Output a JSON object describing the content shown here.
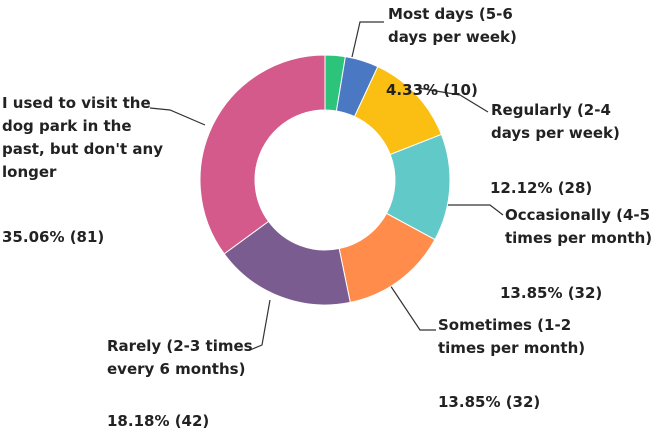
{
  "chart_data": {
    "type": "donut",
    "categories": [
      null,
      "Most days (5-6 days per week)",
      "Regularly (2-4 days per week)",
      "Occasionally (4-5 times per month)",
      "Sometimes (1-2 times per month)",
      "Rarely (2-3 times every 6 months)",
      "I used to visit the dog park in the past, but don't any longer"
    ],
    "values": [
      2.61,
      4.33,
      12.12,
      13.85,
      13.85,
      18.18,
      35.06
    ],
    "value_labels": [
      null,
      "4.33% (10)",
      "12.12% (28)",
      "13.85% (32)",
      "13.85% (32)",
      "18.18% (42)",
      "35.06% (81)"
    ],
    "colors": [
      "#2bc47a",
      "#4a78c2",
      "#fbbf14",
      "#62c9c9",
      "#ff8c4a",
      "#7a5c91",
      "#d35a8a"
    ]
  }
}
